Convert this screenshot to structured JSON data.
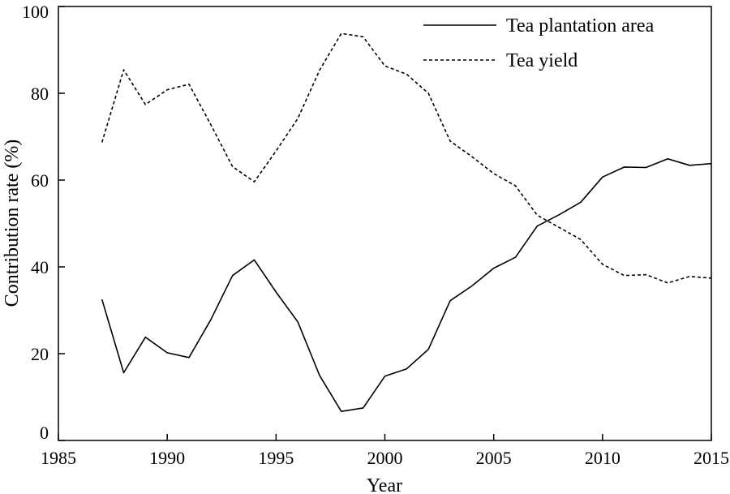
{
  "chart_data": {
    "type": "line",
    "xlabel": "Year",
    "ylabel": "Contribution rate (%)",
    "xlim": [
      1985,
      2015
    ],
    "ylim": [
      0,
      100
    ],
    "xticks": [
      1985,
      1990,
      1995,
      2000,
      2005,
      2010,
      2015
    ],
    "yticks": [
      0,
      20,
      40,
      60,
      80,
      100
    ],
    "x": [
      1987,
      1988,
      1989,
      1990,
      1991,
      1992,
      1993,
      1994,
      1995,
      1996,
      1997,
      1998,
      1999,
      2000,
      2001,
      2002,
      2003,
      2004,
      2005,
      2006,
      2007,
      2008,
      2009,
      2010,
      2011,
      2012,
      2013,
      2014,
      2015
    ],
    "series": [
      {
        "name": "Tea plantation area",
        "style": "solid",
        "values": [
          32.5,
          15.6,
          23.8,
          20.2,
          19.1,
          27.8,
          38.0,
          41.6,
          34.2,
          27.3,
          15.0,
          6.7,
          7.5,
          14.8,
          16.5,
          21.0,
          32.2,
          35.6,
          39.7,
          42.2,
          49.4,
          52.0,
          54.9,
          60.7,
          63.0,
          62.9,
          64.9,
          63.4,
          63.8
        ]
      },
      {
        "name": "Tea yield",
        "style": "dashed",
        "values": [
          68.7,
          85.4,
          77.4,
          80.8,
          82.1,
          72.8,
          63.1,
          59.6,
          66.7,
          74.2,
          85.3,
          93.8,
          93.0,
          86.3,
          84.4,
          80.0,
          69.0,
          65.4,
          61.5,
          58.7,
          51.9,
          49.1,
          46.3,
          40.6,
          38.0,
          38.2,
          36.3,
          37.8,
          37.4
        ]
      }
    ],
    "legend": "top-right",
    "grid": false
  }
}
